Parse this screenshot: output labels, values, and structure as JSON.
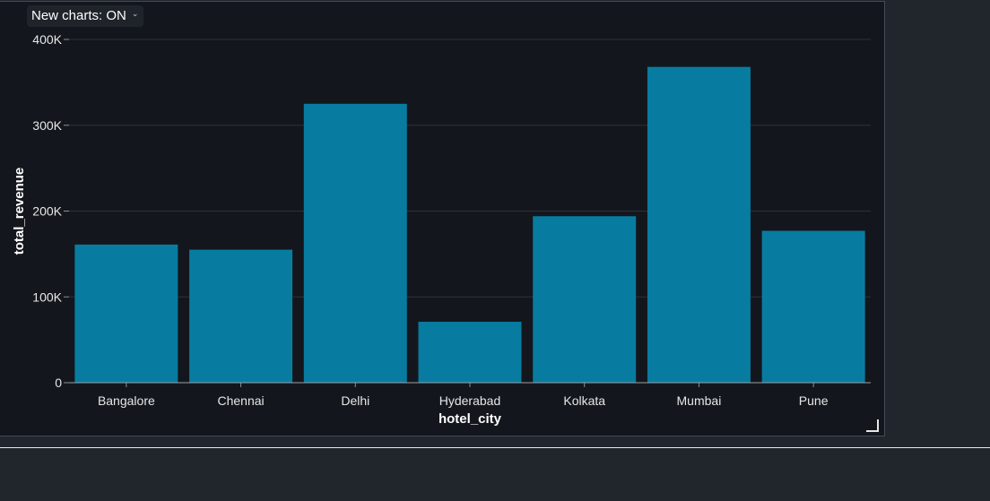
{
  "toggle": {
    "label": "New charts: ON",
    "chevron": "chevron-down-icon"
  },
  "chart_data": {
    "type": "bar",
    "title": "",
    "xlabel": "hotel_city",
    "ylabel": "total_revenue",
    "categories": [
      "Bangalore",
      "Chennai",
      "Delhi",
      "Hyderabad",
      "Kolkata",
      "Mumbai",
      "Pune"
    ],
    "values": [
      161000,
      155000,
      325000,
      71000,
      194000,
      368000,
      177000
    ],
    "ylim": [
      0,
      400000
    ],
    "yticks": [
      0,
      100000,
      200000,
      300000,
      400000
    ],
    "ytick_labels": [
      "0",
      "100K",
      "200K",
      "300K",
      "400K"
    ],
    "grid": true,
    "bar_color": "#087ca0"
  }
}
